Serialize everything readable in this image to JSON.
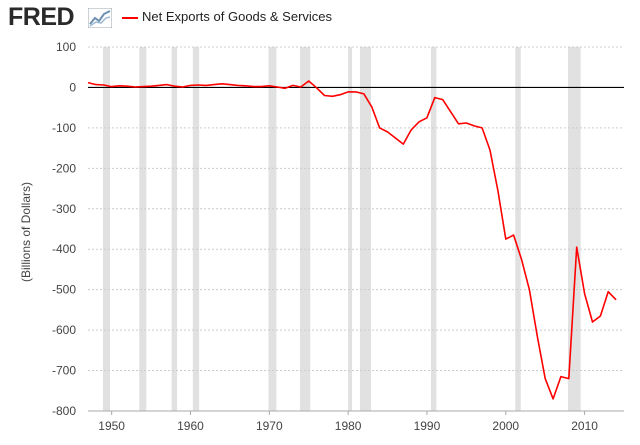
{
  "header": {
    "logo_text": "FRED",
    "logo_icon": "line-chart-icon",
    "series_label": "Net Exports of Goods & Services"
  },
  "colors": {
    "series": "#ff0000",
    "recession": "#e1e1e1",
    "grid": "#cccccc",
    "zero_line": "#000000"
  },
  "chart_data": {
    "type": "line",
    "title": "",
    "xlabel": "",
    "ylabel": "(Billions of Dollars)",
    "xlim": [
      1947,
      2015
    ],
    "ylim": [
      -800,
      100
    ],
    "yticks": [
      100,
      0,
      -100,
      -200,
      -300,
      -400,
      -500,
      -600,
      -700,
      -800
    ],
    "xticks": [
      1950,
      1960,
      1970,
      1980,
      1990,
      2000,
      2010
    ],
    "grid": true,
    "legend": "top-left",
    "reference_line": 0,
    "recessions": [
      [
        1948.9,
        1949.8
      ],
      [
        1953.5,
        1954.4
      ],
      [
        1957.6,
        1958.3
      ],
      [
        1960.3,
        1961.1
      ],
      [
        1969.9,
        1970.9
      ],
      [
        1973.9,
        1975.2
      ],
      [
        1980.0,
        1980.5
      ],
      [
        1981.5,
        1982.9
      ],
      [
        1990.5,
        1991.2
      ],
      [
        2001.2,
        2001.9
      ],
      [
        2007.9,
        2009.5
      ]
    ],
    "series": [
      {
        "name": "Net Exports of Goods & Services",
        "x": [
          1947,
          1948,
          1949,
          1950,
          1951,
          1952,
          1953,
          1954,
          1955,
          1956,
          1957,
          1958,
          1959,
          1960,
          1961,
          1962,
          1963,
          1964,
          1965,
          1966,
          1967,
          1968,
          1969,
          1970,
          1971,
          1972,
          1973,
          1974,
          1975,
          1976,
          1977,
          1978,
          1979,
          1980,
          1981,
          1982,
          1983,
          1984,
          1985,
          1986,
          1987,
          1988,
          1989,
          1990,
          1991,
          1992,
          1993,
          1994,
          1995,
          1996,
          1997,
          1998,
          1999,
          2000,
          2001,
          2002,
          2003,
          2004,
          2005,
          2006,
          2007,
          2008,
          2009,
          2010,
          2011,
          2012,
          2013,
          2014
        ],
        "values": [
          12,
          7,
          6,
          2,
          4,
          3,
          1,
          2,
          3,
          5,
          7,
          3,
          1,
          5,
          6,
          5,
          7,
          9,
          7,
          5,
          4,
          2,
          2,
          4,
          1,
          -2,
          5,
          1,
          16,
          -1,
          -20,
          -22,
          -18,
          -11,
          -11,
          -16,
          -48,
          -100,
          -110,
          -125,
          -140,
          -105,
          -85,
          -75,
          -25,
          -30,
          -60,
          -90,
          -88,
          -95,
          -100,
          -155,
          -255,
          -375,
          -365,
          -425,
          -500,
          -615,
          -720,
          -770,
          -715,
          -720,
          -395,
          -510,
          -580,
          -565,
          -505,
          -525
        ]
      }
    ]
  }
}
